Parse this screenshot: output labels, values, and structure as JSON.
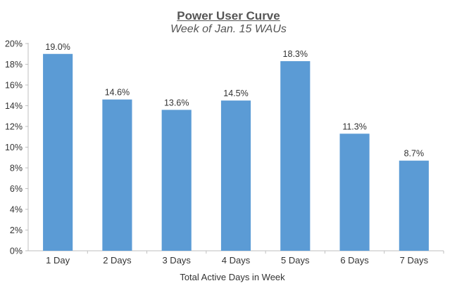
{
  "chart_data": {
    "type": "bar",
    "title": "Power User Curve",
    "subtitle": "Week of Jan. 15 WAUs",
    "xlabel": "Total Active Days in Week",
    "ylabel": "",
    "categories": [
      "1 Day",
      "2 Days",
      "3 Days",
      "4 Days",
      "5 Days",
      "6 Days",
      "7 Days"
    ],
    "values": [
      19.0,
      14.6,
      13.6,
      14.5,
      18.3,
      11.3,
      8.7
    ],
    "value_labels": [
      "19.0%",
      "14.6%",
      "13.6%",
      "14.5%",
      "18.3%",
      "11.3%",
      "8.7%"
    ],
    "ylim": [
      0,
      20
    ],
    "y_ticks": [
      0,
      2,
      4,
      6,
      8,
      10,
      12,
      14,
      16,
      18,
      20
    ],
    "y_tick_labels": [
      "0%",
      "2%",
      "4%",
      "6%",
      "8%",
      "10%",
      "12%",
      "14%",
      "16%",
      "18%",
      "20%"
    ],
    "grid": false,
    "legend": "none",
    "bar_color": "#5b9bd5",
    "axis_color": "#bfbfbf",
    "text_color": "#333333"
  }
}
